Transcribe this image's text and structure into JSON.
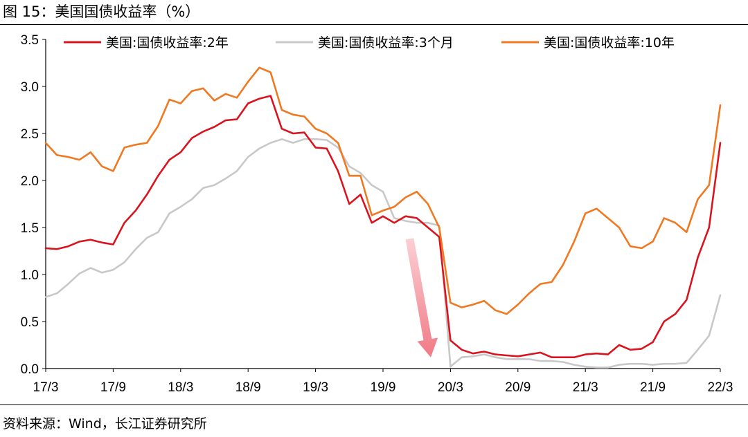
{
  "figure_title": "图 15：美国国债收益率（%）",
  "source_note": "资料来源：Wind，长江证券研究所",
  "chart_data": {
    "type": "line",
    "title": "",
    "xlabel": "",
    "ylabel": "",
    "x_ticks": [
      "17/3",
      "17/9",
      "18/3",
      "18/9",
      "19/3",
      "19/9",
      "20/3",
      "20/9",
      "21/3",
      "21/9",
      "22/3"
    ],
    "y_ticks": [
      "0.0",
      "0.5",
      "1.0",
      "1.5",
      "2.0",
      "2.5",
      "3.0",
      "3.5"
    ],
    "ylim": [
      0,
      3.5
    ],
    "xlim": [
      "2017-03",
      "2022-03"
    ],
    "grid": false,
    "legend_position": "top",
    "annotation": "red arrow pointing down at the March 2020 drop",
    "series": [
      {
        "name": "美国:国债收益率:2年",
        "color": "#d9141e",
        "points": [
          [
            "2017-03",
            1.28
          ],
          [
            "2017-04",
            1.27
          ],
          [
            "2017-05",
            1.3
          ],
          [
            "2017-06",
            1.35
          ],
          [
            "2017-07",
            1.37
          ],
          [
            "2017-08",
            1.34
          ],
          [
            "2017-09",
            1.32
          ],
          [
            "2017-10",
            1.55
          ],
          [
            "2017-11",
            1.68
          ],
          [
            "2017-12",
            1.85
          ],
          [
            "2018-01",
            2.05
          ],
          [
            "2018-02",
            2.22
          ],
          [
            "2018-03",
            2.3
          ],
          [
            "2018-04",
            2.45
          ],
          [
            "2018-05",
            2.52
          ],
          [
            "2018-06",
            2.57
          ],
          [
            "2018-07",
            2.64
          ],
          [
            "2018-08",
            2.65
          ],
          [
            "2018-09",
            2.82
          ],
          [
            "2018-10",
            2.87
          ],
          [
            "2018-11",
            2.9
          ],
          [
            "2018-12",
            2.55
          ],
          [
            "2019-01",
            2.5
          ],
          [
            "2019-02",
            2.51
          ],
          [
            "2019-03",
            2.35
          ],
          [
            "2019-04",
            2.34
          ],
          [
            "2019-05",
            2.1
          ],
          [
            "2019-06",
            1.75
          ],
          [
            "2019-07",
            1.85
          ],
          [
            "2019-08",
            1.55
          ],
          [
            "2019-09",
            1.62
          ],
          [
            "2019-10",
            1.55
          ],
          [
            "2019-11",
            1.62
          ],
          [
            "2019-12",
            1.6
          ],
          [
            "2020-01",
            1.5
          ],
          [
            "2020-02",
            1.4
          ],
          [
            "2020-03",
            0.3
          ],
          [
            "2020-04",
            0.2
          ],
          [
            "2020-05",
            0.16
          ],
          [
            "2020-06",
            0.18
          ],
          [
            "2020-07",
            0.15
          ],
          [
            "2020-08",
            0.14
          ],
          [
            "2020-09",
            0.13
          ],
          [
            "2020-10",
            0.15
          ],
          [
            "2020-11",
            0.17
          ],
          [
            "2020-12",
            0.12
          ],
          [
            "2021-01",
            0.12
          ],
          [
            "2021-02",
            0.12
          ],
          [
            "2021-03",
            0.15
          ],
          [
            "2021-04",
            0.16
          ],
          [
            "2021-05",
            0.15
          ],
          [
            "2021-06",
            0.25
          ],
          [
            "2021-07",
            0.2
          ],
          [
            "2021-08",
            0.21
          ],
          [
            "2021-09",
            0.28
          ],
          [
            "2021-10",
            0.5
          ],
          [
            "2021-11",
            0.58
          ],
          [
            "2021-12",
            0.73
          ],
          [
            "2022-01",
            1.18
          ],
          [
            "2022-02",
            1.5
          ],
          [
            "2022-03",
            2.4
          ]
        ]
      },
      {
        "name": "美国:国债收益率:3个月",
        "color": "#c8c8c8",
        "points": [
          [
            "2017-03",
            0.76
          ],
          [
            "2017-04",
            0.8
          ],
          [
            "2017-05",
            0.9
          ],
          [
            "2017-06",
            1.01
          ],
          [
            "2017-07",
            1.07
          ],
          [
            "2017-08",
            1.02
          ],
          [
            "2017-09",
            1.05
          ],
          [
            "2017-10",
            1.13
          ],
          [
            "2017-11",
            1.27
          ],
          [
            "2017-12",
            1.39
          ],
          [
            "2018-01",
            1.45
          ],
          [
            "2018-02",
            1.65
          ],
          [
            "2018-03",
            1.72
          ],
          [
            "2018-04",
            1.8
          ],
          [
            "2018-05",
            1.92
          ],
          [
            "2018-06",
            1.95
          ],
          [
            "2018-07",
            2.02
          ],
          [
            "2018-08",
            2.1
          ],
          [
            "2018-09",
            2.25
          ],
          [
            "2018-10",
            2.34
          ],
          [
            "2018-11",
            2.4
          ],
          [
            "2018-12",
            2.44
          ],
          [
            "2019-01",
            2.4
          ],
          [
            "2019-02",
            2.44
          ],
          [
            "2019-03",
            2.44
          ],
          [
            "2019-04",
            2.43
          ],
          [
            "2019-05",
            2.35
          ],
          [
            "2019-06",
            2.15
          ],
          [
            "2019-07",
            2.08
          ],
          [
            "2019-08",
            1.95
          ],
          [
            "2019-09",
            1.88
          ],
          [
            "2019-10",
            1.6
          ],
          [
            "2019-11",
            1.57
          ],
          [
            "2019-12",
            1.55
          ],
          [
            "2020-01",
            1.55
          ],
          [
            "2020-02",
            1.52
          ],
          [
            "2020-03",
            0.02
          ],
          [
            "2020-04",
            0.12
          ],
          [
            "2020-05",
            0.13
          ],
          [
            "2020-06",
            0.15
          ],
          [
            "2020-07",
            0.12
          ],
          [
            "2020-08",
            0.1
          ],
          [
            "2020-09",
            0.1
          ],
          [
            "2020-10",
            0.1
          ],
          [
            "2020-11",
            0.08
          ],
          [
            "2020-12",
            0.08
          ],
          [
            "2021-01",
            0.07
          ],
          [
            "2021-02",
            0.04
          ],
          [
            "2021-03",
            0.02
          ],
          [
            "2021-04",
            0.01
          ],
          [
            "2021-05",
            0.01
          ],
          [
            "2021-06",
            0.04
          ],
          [
            "2021-07",
            0.05
          ],
          [
            "2021-08",
            0.05
          ],
          [
            "2021-09",
            0.04
          ],
          [
            "2021-10",
            0.05
          ],
          [
            "2021-11",
            0.05
          ],
          [
            "2021-12",
            0.06
          ],
          [
            "2022-01",
            0.2
          ],
          [
            "2022-02",
            0.35
          ],
          [
            "2022-03",
            0.78
          ]
        ]
      },
      {
        "name": "美国:国债收益率:10年",
        "color": "#f07820",
        "points": [
          [
            "2017-03",
            2.4
          ],
          [
            "2017-04",
            2.27
          ],
          [
            "2017-05",
            2.25
          ],
          [
            "2017-06",
            2.22
          ],
          [
            "2017-07",
            2.3
          ],
          [
            "2017-08",
            2.15
          ],
          [
            "2017-09",
            2.1
          ],
          [
            "2017-10",
            2.35
          ],
          [
            "2017-11",
            2.38
          ],
          [
            "2017-12",
            2.4
          ],
          [
            "2018-01",
            2.58
          ],
          [
            "2018-02",
            2.86
          ],
          [
            "2018-03",
            2.82
          ],
          [
            "2018-04",
            2.95
          ],
          [
            "2018-05",
            2.98
          ],
          [
            "2018-06",
            2.85
          ],
          [
            "2018-07",
            2.92
          ],
          [
            "2018-08",
            2.88
          ],
          [
            "2018-09",
            3.05
          ],
          [
            "2018-10",
            3.2
          ],
          [
            "2018-11",
            3.15
          ],
          [
            "2018-12",
            2.75
          ],
          [
            "2019-01",
            2.7
          ],
          [
            "2019-02",
            2.68
          ],
          [
            "2019-03",
            2.55
          ],
          [
            "2019-04",
            2.5
          ],
          [
            "2019-05",
            2.4
          ],
          [
            "2019-06",
            2.05
          ],
          [
            "2019-07",
            2.05
          ],
          [
            "2019-08",
            1.63
          ],
          [
            "2019-09",
            1.68
          ],
          [
            "2019-10",
            1.72
          ],
          [
            "2019-11",
            1.82
          ],
          [
            "2019-12",
            1.88
          ],
          [
            "2020-01",
            1.75
          ],
          [
            "2020-02",
            1.5
          ],
          [
            "2020-03",
            0.7
          ],
          [
            "2020-04",
            0.65
          ],
          [
            "2020-05",
            0.68
          ],
          [
            "2020-06",
            0.72
          ],
          [
            "2020-07",
            0.62
          ],
          [
            "2020-08",
            0.58
          ],
          [
            "2020-09",
            0.68
          ],
          [
            "2020-10",
            0.8
          ],
          [
            "2020-11",
            0.9
          ],
          [
            "2020-12",
            0.92
          ],
          [
            "2021-01",
            1.1
          ],
          [
            "2021-02",
            1.35
          ],
          [
            "2021-03",
            1.65
          ],
          [
            "2021-04",
            1.7
          ],
          [
            "2021-05",
            1.6
          ],
          [
            "2021-06",
            1.5
          ],
          [
            "2021-07",
            1.3
          ],
          [
            "2021-08",
            1.28
          ],
          [
            "2021-09",
            1.35
          ],
          [
            "2021-10",
            1.6
          ],
          [
            "2021-11",
            1.55
          ],
          [
            "2021-12",
            1.45
          ],
          [
            "2022-01",
            1.8
          ],
          [
            "2022-02",
            1.95
          ],
          [
            "2022-03",
            2.8
          ]
        ]
      }
    ]
  }
}
